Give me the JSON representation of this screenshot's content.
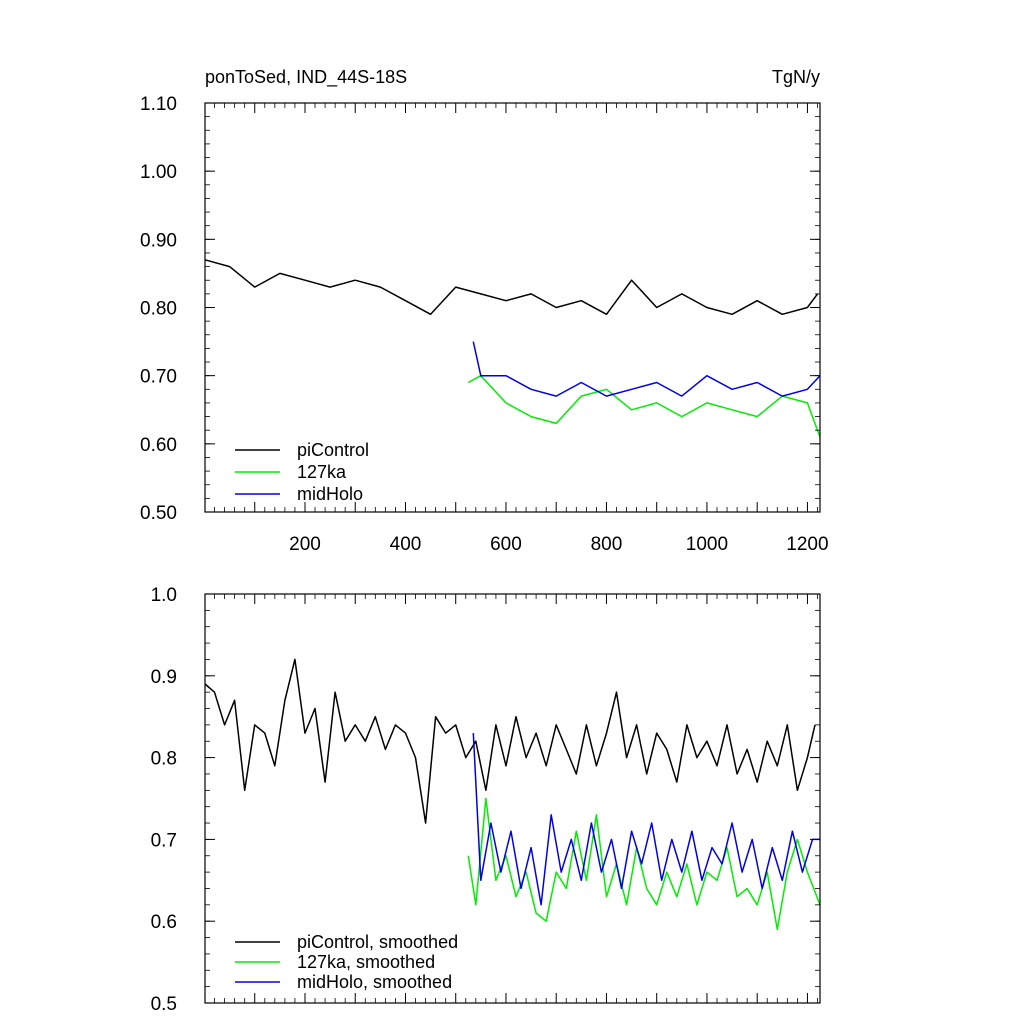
{
  "chart_data": [
    {
      "type": "line",
      "title": "ponToSed, IND_44S-18S",
      "units": "TgN/y",
      "xlabel": "",
      "ylabel": "",
      "xlim": [
        1,
        1225
      ],
      "ylim": [
        0.5,
        1.1
      ],
      "xticks": [
        "200",
        "400",
        "600",
        "800",
        "1000",
        "1200"
      ],
      "yticks": [
        "0.50",
        "0.60",
        "0.70",
        "0.80",
        "0.90",
        "1.00",
        "1.10"
      ],
      "grid": false,
      "legend_position": "bottom-left",
      "series": [
        {
          "name": "piControl",
          "color": "#000000",
          "x": [
            1,
            50,
            100,
            150,
            200,
            250,
            300,
            350,
            400,
            450,
            500,
            550,
            600,
            650,
            700,
            750,
            800,
            850,
            900,
            950,
            1000,
            1050,
            1100,
            1150,
            1200,
            1220
          ],
          "y": [
            0.87,
            0.86,
            0.83,
            0.85,
            0.84,
            0.83,
            0.84,
            0.83,
            0.81,
            0.79,
            0.83,
            0.82,
            0.81,
            0.82,
            0.8,
            0.81,
            0.79,
            0.84,
            0.8,
            0.82,
            0.8,
            0.79,
            0.81,
            0.79,
            0.8,
            0.82
          ]
        },
        {
          "name": "127ka",
          "color": "#00ee00",
          "x": [
            525,
            550,
            600,
            650,
            700,
            750,
            800,
            850,
            900,
            950,
            1000,
            1050,
            1100,
            1150,
            1200,
            1225
          ],
          "y": [
            0.69,
            0.7,
            0.66,
            0.64,
            0.63,
            0.67,
            0.68,
            0.65,
            0.66,
            0.64,
            0.66,
            0.65,
            0.64,
            0.67,
            0.66,
            0.61
          ]
        },
        {
          "name": "midHolo",
          "color": "#0000ee",
          "x": [
            535,
            550,
            600,
            650,
            700,
            750,
            800,
            850,
            900,
            950,
            1000,
            1050,
            1100,
            1150,
            1200,
            1225
          ],
          "y": [
            0.75,
            0.7,
            0.7,
            0.68,
            0.67,
            0.69,
            0.67,
            0.68,
            0.69,
            0.67,
            0.7,
            0.68,
            0.69,
            0.67,
            0.68,
            0.7
          ]
        }
      ]
    },
    {
      "type": "line",
      "title": "",
      "xlabel": "",
      "ylabel": "",
      "xlim": [
        1,
        1225
      ],
      "ylim": [
        0.5,
        1.0
      ],
      "yticks": [
        "0.5",
        "0.6",
        "0.7",
        "0.8",
        "0.9",
        "1.0"
      ],
      "grid": false,
      "legend_position": "bottom-left",
      "series": [
        {
          "name": "piControl, smoothed",
          "color": "#000000",
          "x": [
            1,
            20,
            40,
            60,
            80,
            100,
            120,
            140,
            160,
            180,
            200,
            220,
            240,
            260,
            280,
            300,
            320,
            340,
            360,
            380,
            400,
            420,
            440,
            460,
            480,
            500,
            520,
            540,
            560,
            580,
            600,
            620,
            640,
            660,
            680,
            700,
            720,
            740,
            760,
            780,
            800,
            820,
            840,
            860,
            880,
            900,
            920,
            940,
            960,
            980,
            1000,
            1020,
            1040,
            1060,
            1080,
            1100,
            1120,
            1140,
            1160,
            1180,
            1200,
            1215
          ],
          "y": [
            0.89,
            0.88,
            0.84,
            0.87,
            0.76,
            0.84,
            0.83,
            0.79,
            0.87,
            0.92,
            0.83,
            0.86,
            0.77,
            0.88,
            0.82,
            0.84,
            0.82,
            0.85,
            0.81,
            0.84,
            0.83,
            0.8,
            0.72,
            0.85,
            0.83,
            0.84,
            0.8,
            0.82,
            0.76,
            0.84,
            0.79,
            0.85,
            0.8,
            0.83,
            0.79,
            0.84,
            0.81,
            0.78,
            0.84,
            0.79,
            0.83,
            0.88,
            0.8,
            0.84,
            0.78,
            0.83,
            0.81,
            0.77,
            0.84,
            0.8,
            0.82,
            0.79,
            0.84,
            0.78,
            0.81,
            0.77,
            0.82,
            0.79,
            0.84,
            0.76,
            0.8,
            0.84
          ]
        },
        {
          "name": "127ka, smoothed",
          "color": "#00ee00",
          "x": [
            525,
            540,
            560,
            580,
            600,
            620,
            640,
            660,
            680,
            700,
            720,
            740,
            760,
            780,
            800,
            820,
            840,
            860,
            880,
            900,
            920,
            940,
            960,
            980,
            1000,
            1020,
            1040,
            1060,
            1080,
            1100,
            1120,
            1140,
            1160,
            1180,
            1200,
            1225
          ],
          "y": [
            0.68,
            0.62,
            0.75,
            0.65,
            0.68,
            0.63,
            0.66,
            0.61,
            0.6,
            0.66,
            0.64,
            0.71,
            0.65,
            0.73,
            0.63,
            0.67,
            0.62,
            0.69,
            0.64,
            0.62,
            0.66,
            0.63,
            0.67,
            0.62,
            0.66,
            0.65,
            0.69,
            0.63,
            0.64,
            0.62,
            0.66,
            0.59,
            0.66,
            0.7,
            0.66,
            0.62
          ]
        },
        {
          "name": "midHolo, smoothed",
          "color": "#0000ee",
          "x": [
            535,
            550,
            570,
            590,
            610,
            630,
            650,
            670,
            690,
            710,
            730,
            750,
            770,
            790,
            810,
            830,
            850,
            870,
            890,
            910,
            930,
            950,
            970,
            990,
            1010,
            1030,
            1050,
            1070,
            1090,
            1110,
            1130,
            1150,
            1170,
            1190,
            1210,
            1225
          ],
          "y": [
            0.83,
            0.65,
            0.72,
            0.66,
            0.71,
            0.64,
            0.69,
            0.62,
            0.73,
            0.66,
            0.7,
            0.65,
            0.72,
            0.66,
            0.7,
            0.64,
            0.71,
            0.67,
            0.72,
            0.65,
            0.7,
            0.66,
            0.71,
            0.65,
            0.69,
            0.67,
            0.72,
            0.66,
            0.7,
            0.64,
            0.69,
            0.65,
            0.71,
            0.66,
            0.7,
            0.7
          ]
        }
      ]
    }
  ]
}
